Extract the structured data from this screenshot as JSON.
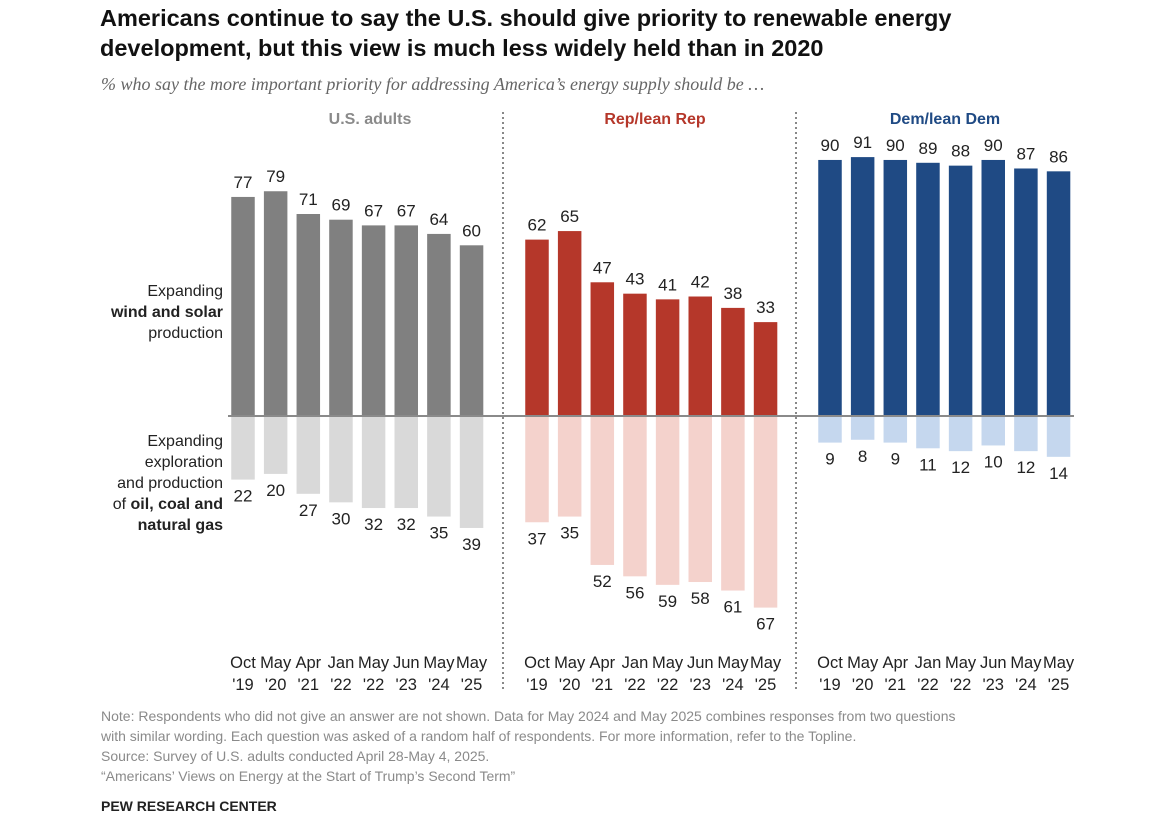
{
  "title_lines": [
    "Americans continue to say the U.S. should give priority to renewable energy",
    "development, but this view is much less widely held than in 2020"
  ],
  "subtitle": "% who say the more important priority for addressing America’s energy supply should be …",
  "chart_data": {
    "type": "bar",
    "categories": [
      [
        "Oct",
        "'19"
      ],
      [
        "May",
        "'20"
      ],
      [
        "Apr",
        "'21"
      ],
      [
        "Jan",
        "'22"
      ],
      [
        "May",
        "'22"
      ],
      [
        "Jun",
        "'23"
      ],
      [
        "May",
        "'24"
      ],
      [
        "May",
        "'25"
      ]
    ],
    "row_labels": {
      "positive": {
        "l1": "Expanding",
        "l2": "wind and solar",
        "l3": "production"
      },
      "negative": {
        "l1": "Expanding",
        "l2": "exploration",
        "l3": "and production",
        "l4a": "of ",
        "l4b": "oil, coal and",
        "l5": "natural gas"
      }
    },
    "panels": [
      {
        "name": "U.S. adults",
        "color": "#808080",
        "light": "#d9d9d9",
        "label_color": "#8a8a8a",
        "positive": [
          77,
          79,
          71,
          69,
          67,
          67,
          64,
          60
        ],
        "negative": [
          22,
          20,
          27,
          30,
          32,
          32,
          35,
          39
        ]
      },
      {
        "name": "Rep/lean Rep",
        "color": "#b5372a",
        "light": "#f4d2cc",
        "label_color": "#b5372a",
        "positive": [
          62,
          65,
          47,
          43,
          41,
          42,
          38,
          33
        ],
        "negative": [
          37,
          35,
          52,
          56,
          59,
          58,
          61,
          67
        ]
      },
      {
        "name": "Dem/lean Dem",
        "color": "#1f4a84",
        "light": "#c5d7ee",
        "label_color": "#1f4a84",
        "positive": [
          90,
          91,
          90,
          89,
          88,
          90,
          87,
          86
        ],
        "negative": [
          9,
          8,
          9,
          11,
          12,
          10,
          12,
          14
        ]
      }
    ],
    "grid": false
  },
  "notes": [
    "Note: Respondents who did not give an answer are not shown. Data for May 2024 and May 2025 combines responses from two questions",
    "with similar wording. Each question was asked of a random half of respondents. For more information, refer to the Topline.",
    "Source: Survey of U.S. adults conducted April 28-May 4, 2025.",
    "“Americans’ Views on Energy at the Start of Trump’s Second Term”"
  ],
  "brand": "PEW RESEARCH CENTER"
}
